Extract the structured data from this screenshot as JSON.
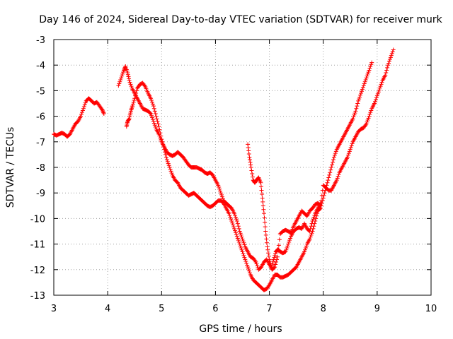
{
  "chart_data": {
    "type": "scatter",
    "title": "Day 146 of 2024, Sidereal Day-to-day VTEC variation (SDTVAR) for receiver murk",
    "xlabel": "GPS time / hours",
    "ylabel": "SDTVAR / TECUs",
    "xlim": [
      3,
      10
    ],
    "ylim": [
      -13,
      -3
    ],
    "xticks": [
      "3",
      "4",
      "5",
      "6",
      "7",
      "8",
      "9",
      "10"
    ],
    "yticks": [
      "-13",
      "-12",
      "-11",
      "-10",
      "-9",
      "-8",
      "-7",
      "-6",
      "-5",
      "-4",
      "-3"
    ],
    "grid": true,
    "marker": "plus",
    "color": "#ff0000",
    "series": [
      {
        "points": [
          [
            3.0,
            -6.7
          ],
          [
            3.05,
            -6.75
          ],
          [
            3.1,
            -6.7
          ],
          [
            3.15,
            -6.65
          ],
          [
            3.2,
            -6.7
          ],
          [
            3.25,
            -6.8
          ],
          [
            3.3,
            -6.7
          ],
          [
            3.35,
            -6.5
          ],
          [
            3.4,
            -6.3
          ],
          [
            3.45,
            -6.2
          ],
          [
            3.5,
            -6.0
          ],
          [
            3.55,
            -5.7
          ],
          [
            3.6,
            -5.4
          ],
          [
            3.65,
            -5.3
          ],
          [
            3.7,
            -5.4
          ],
          [
            3.75,
            -5.5
          ],
          [
            3.8,
            -5.45
          ],
          [
            3.85,
            -5.6
          ],
          [
            3.9,
            -5.75
          ],
          [
            3.93,
            -5.9
          ]
        ]
      },
      {
        "points": [
          [
            4.2,
            -4.8
          ],
          [
            4.25,
            -4.5
          ],
          [
            4.3,
            -4.2
          ],
          [
            4.33,
            -4.05
          ],
          [
            4.37,
            -4.3
          ],
          [
            4.4,
            -4.6
          ],
          [
            4.45,
            -4.9
          ],
          [
            4.5,
            -5.1
          ],
          [
            4.55,
            -5.3
          ],
          [
            4.6,
            -5.5
          ],
          [
            4.65,
            -5.7
          ],
          [
            4.7,
            -5.75
          ],
          [
            4.75,
            -5.8
          ],
          [
            4.8,
            -5.9
          ],
          [
            4.85,
            -6.2
          ],
          [
            4.9,
            -6.5
          ],
          [
            4.95,
            -6.7
          ],
          [
            5.0,
            -7.0
          ],
          [
            5.05,
            -7.2
          ],
          [
            5.1,
            -7.4
          ],
          [
            5.15,
            -7.5
          ],
          [
            5.2,
            -7.55
          ],
          [
            5.25,
            -7.5
          ],
          [
            5.3,
            -7.4
          ],
          [
            5.35,
            -7.5
          ],
          [
            5.4,
            -7.6
          ],
          [
            5.45,
            -7.75
          ],
          [
            5.5,
            -7.9
          ],
          [
            5.55,
            -8.0
          ],
          [
            5.6,
            -8.0
          ],
          [
            5.65,
            -8.0
          ],
          [
            5.7,
            -8.05
          ],
          [
            5.75,
            -8.1
          ],
          [
            5.8,
            -8.2
          ],
          [
            5.85,
            -8.25
          ],
          [
            5.9,
            -8.2
          ],
          [
            5.95,
            -8.3
          ],
          [
            6.0,
            -8.5
          ],
          [
            6.05,
            -8.7
          ],
          [
            6.1,
            -9.0
          ],
          [
            6.15,
            -9.3
          ],
          [
            6.2,
            -9.4
          ],
          [
            6.25,
            -9.5
          ],
          [
            6.3,
            -9.6
          ],
          [
            6.35,
            -9.8
          ],
          [
            6.4,
            -10.1
          ],
          [
            6.45,
            -10.5
          ],
          [
            6.5,
            -10.8
          ],
          [
            6.55,
            -11.1
          ],
          [
            6.6,
            -11.3
          ],
          [
            6.65,
            -11.5
          ],
          [
            6.7,
            -11.55
          ],
          [
            6.75,
            -11.7
          ],
          [
            6.8,
            -12.0
          ],
          [
            6.85,
            -11.9
          ],
          [
            6.9,
            -11.7
          ],
          [
            6.95,
            -11.6
          ],
          [
            7.0,
            -11.8
          ],
          [
            7.05,
            -12.0
          ],
          [
            7.1,
            -11.9
          ],
          [
            7.15,
            -11.5
          ],
          [
            7.2,
            -10.6
          ],
          [
            7.25,
            -10.5
          ],
          [
            7.3,
            -10.45
          ],
          [
            7.35,
            -10.5
          ],
          [
            7.4,
            -10.55
          ],
          [
            7.45,
            -10.3
          ],
          [
            7.5,
            -10.1
          ],
          [
            7.55,
            -9.9
          ],
          [
            7.6,
            -9.7
          ],
          [
            7.65,
            -9.8
          ],
          [
            7.7,
            -9.9
          ],
          [
            7.75,
            -9.7
          ],
          [
            7.8,
            -9.6
          ],
          [
            7.85,
            -9.45
          ],
          [
            7.9,
            -9.4
          ],
          [
            7.95,
            -9.5
          ],
          [
            8.0,
            -8.7
          ],
          [
            8.05,
            -8.8
          ],
          [
            8.1,
            -8.9
          ],
          [
            8.15,
            -8.9
          ],
          [
            8.2,
            -8.7
          ],
          [
            8.25,
            -8.5
          ],
          [
            8.3,
            -8.2
          ],
          [
            8.35,
            -8.0
          ],
          [
            8.4,
            -7.8
          ],
          [
            8.45,
            -7.6
          ],
          [
            8.5,
            -7.3
          ],
          [
            8.55,
            -7.0
          ],
          [
            8.6,
            -6.8
          ],
          [
            8.65,
            -6.6
          ],
          [
            8.7,
            -6.5
          ],
          [
            8.75,
            -6.45
          ],
          [
            8.8,
            -6.3
          ],
          [
            8.85,
            -6.0
          ],
          [
            8.9,
            -5.7
          ],
          [
            8.95,
            -5.5
          ],
          [
            9.0,
            -5.2
          ],
          [
            9.05,
            -4.9
          ],
          [
            9.1,
            -4.6
          ],
          [
            9.15,
            -4.4
          ],
          [
            9.2,
            -4.0
          ],
          [
            9.25,
            -3.7
          ],
          [
            9.3,
            -3.4
          ]
        ]
      },
      {
        "points": [
          [
            4.35,
            -6.4
          ],
          [
            4.37,
            -6.2
          ],
          [
            4.4,
            -6.1
          ],
          [
            4.43,
            -5.8
          ],
          [
            4.46,
            -5.6
          ],
          [
            4.5,
            -5.3
          ],
          [
            4.55,
            -4.9
          ],
          [
            4.6,
            -4.75
          ],
          [
            4.65,
            -4.7
          ],
          [
            4.7,
            -4.85
          ],
          [
            4.75,
            -5.1
          ],
          [
            4.8,
            -5.3
          ],
          [
            4.85,
            -5.6
          ],
          [
            4.9,
            -6.0
          ],
          [
            4.95,
            -6.4
          ],
          [
            5.0,
            -6.9
          ],
          [
            5.05,
            -7.3
          ],
          [
            5.1,
            -7.7
          ],
          [
            5.15,
            -8.0
          ],
          [
            5.2,
            -8.3
          ],
          [
            5.25,
            -8.5
          ],
          [
            5.3,
            -8.6
          ],
          [
            5.35,
            -8.8
          ],
          [
            5.4,
            -8.9
          ],
          [
            5.45,
            -9.0
          ],
          [
            5.5,
            -9.1
          ],
          [
            5.55,
            -9.05
          ],
          [
            5.6,
            -9.0
          ],
          [
            5.65,
            -9.1
          ],
          [
            5.7,
            -9.2
          ],
          [
            5.75,
            -9.3
          ],
          [
            5.8,
            -9.4
          ],
          [
            5.85,
            -9.5
          ],
          [
            5.9,
            -9.55
          ],
          [
            5.95,
            -9.5
          ],
          [
            6.0,
            -9.4
          ],
          [
            6.05,
            -9.3
          ],
          [
            6.1,
            -9.3
          ],
          [
            6.15,
            -9.4
          ],
          [
            6.2,
            -9.6
          ],
          [
            6.25,
            -9.8
          ],
          [
            6.3,
            -10.1
          ],
          [
            6.35,
            -10.4
          ],
          [
            6.4,
            -10.7
          ],
          [
            6.45,
            -11.0
          ],
          [
            6.5,
            -11.3
          ],
          [
            6.55,
            -11.6
          ],
          [
            6.6,
            -11.9
          ],
          [
            6.65,
            -12.2
          ],
          [
            6.7,
            -12.4
          ],
          [
            6.75,
            -12.5
          ],
          [
            6.8,
            -12.6
          ],
          [
            6.85,
            -12.7
          ],
          [
            6.9,
            -12.8
          ],
          [
            6.95,
            -12.75
          ],
          [
            7.0,
            -12.6
          ],
          [
            7.05,
            -12.4
          ],
          [
            7.1,
            -12.2
          ],
          [
            7.15,
            -12.2
          ],
          [
            7.2,
            -12.3
          ],
          [
            7.25,
            -12.3
          ],
          [
            7.3,
            -12.25
          ],
          [
            7.35,
            -12.2
          ],
          [
            7.4,
            -12.1
          ],
          [
            7.45,
            -12.0
          ],
          [
            7.5,
            -11.9
          ],
          [
            7.55,
            -11.7
          ],
          [
            7.6,
            -11.5
          ],
          [
            7.65,
            -11.3
          ],
          [
            7.7,
            -11.0
          ],
          [
            7.75,
            -10.8
          ],
          [
            7.8,
            -10.5
          ],
          [
            7.85,
            -10.1
          ],
          [
            7.9,
            -9.7
          ],
          [
            7.95,
            -9.6
          ],
          [
            8.0,
            -9.2
          ],
          [
            8.05,
            -8.8
          ],
          [
            8.1,
            -8.4
          ],
          [
            8.15,
            -8.0
          ],
          [
            8.2,
            -7.6
          ],
          [
            8.25,
            -7.3
          ],
          [
            8.3,
            -7.1
          ],
          [
            8.35,
            -6.9
          ],
          [
            8.4,
            -6.7
          ],
          [
            8.45,
            -6.5
          ],
          [
            8.5,
            -6.3
          ],
          [
            8.55,
            -6.1
          ],
          [
            8.6,
            -5.8
          ],
          [
            8.65,
            -5.4
          ],
          [
            8.7,
            -5.1
          ],
          [
            8.75,
            -4.8
          ],
          [
            8.8,
            -4.5
          ],
          [
            8.85,
            -4.2
          ],
          [
            8.9,
            -3.9
          ]
        ]
      },
      {
        "points": [
          [
            6.6,
            -7.1
          ],
          [
            6.63,
            -7.6
          ],
          [
            6.66,
            -8.0
          ],
          [
            6.7,
            -8.5
          ],
          [
            6.73,
            -8.6
          ],
          [
            6.76,
            -8.5
          ],
          [
            6.8,
            -8.4
          ],
          [
            6.84,
            -8.6
          ],
          [
            6.87,
            -9.2
          ],
          [
            6.9,
            -9.8
          ],
          [
            6.93,
            -10.5
          ],
          [
            6.96,
            -11.1
          ],
          [
            7.0,
            -11.6
          ],
          [
            7.04,
            -11.9
          ],
          [
            7.08,
            -11.6
          ],
          [
            7.12,
            -11.3
          ],
          [
            7.16,
            -11.2
          ],
          [
            7.2,
            -11.3
          ],
          [
            7.25,
            -11.35
          ],
          [
            7.3,
            -11.3
          ],
          [
            7.35,
            -11.0
          ],
          [
            7.4,
            -10.7
          ],
          [
            7.45,
            -10.5
          ],
          [
            7.5,
            -10.4
          ],
          [
            7.55,
            -10.35
          ],
          [
            7.6,
            -10.4
          ],
          [
            7.65,
            -10.2
          ],
          [
            7.7,
            -10.4
          ],
          [
            7.75,
            -10.5
          ],
          [
            7.8,
            -10.1
          ],
          [
            7.85,
            -9.8
          ],
          [
            7.9,
            -9.6
          ],
          [
            7.95,
            -9.4
          ]
        ]
      }
    ]
  }
}
